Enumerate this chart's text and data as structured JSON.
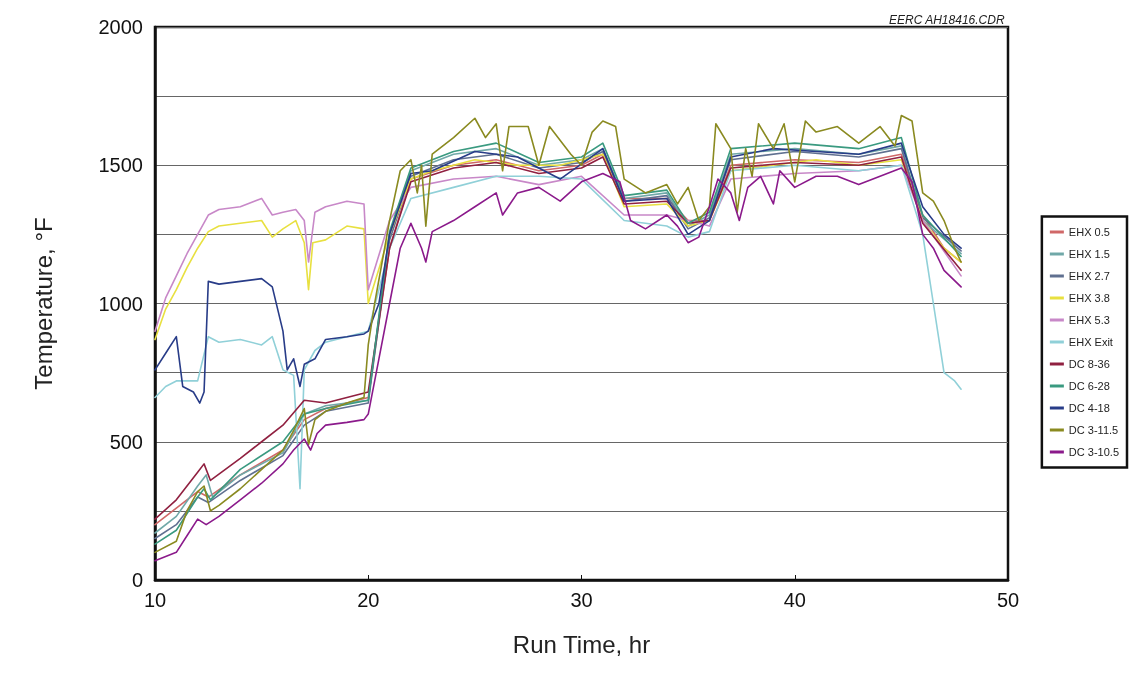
{
  "chart_data": {
    "type": "line",
    "xlabel": "Run Time, hr",
    "ylabel": "Temperature, °F",
    "annotations": [
      "EERC AH18416.CDR"
    ],
    "xlim": [
      10,
      50
    ],
    "xticks": [
      10,
      20,
      30,
      40,
      50
    ],
    "ylim": [
      0,
      2000
    ],
    "yticks": [
      0,
      {
        "value": 250,
        "label": null
      },
      500,
      {
        "value": 750,
        "label": null
      },
      1000,
      {
        "value": 1250,
        "label": null
      },
      1500,
      {
        "value": 1750,
        "label": null
      },
      2000
    ],
    "grid": "y",
    "legend": "right",
    "marker": "none",
    "line_style": "solid",
    "series": [
      {
        "name": "EHX 0.5",
        "color": "#d06868",
        "x": [
          10,
          11,
          12,
          12.5,
          14,
          16,
          17,
          18,
          19,
          20,
          21,
          22,
          24,
          26,
          28,
          30,
          31,
          32,
          34,
          35,
          36,
          37,
          40,
          43,
          45,
          46,
          47,
          47.8
        ],
        "values": [
          200,
          260,
          320,
          300,
          380,
          470,
          580,
          620,
          640,
          660,
          1200,
          1450,
          1500,
          1520,
          1480,
          1500,
          1540,
          1380,
          1380,
          1300,
          1300,
          1500,
          1520,
          1510,
          1540,
          1320,
          1200,
          1150
        ]
      },
      {
        "name": "EHX 1.5",
        "color": "#70a8a8",
        "x": [
          10,
          11,
          12,
          12.4,
          12.7,
          14,
          16,
          17,
          18,
          20,
          21,
          22,
          24,
          26,
          28,
          30,
          31,
          32,
          34,
          35,
          36,
          37,
          40,
          43,
          45,
          46,
          47.8
        ],
        "values": [
          170,
          230,
          340,
          380,
          300,
          380,
          460,
          600,
          630,
          650,
          1250,
          1480,
          1540,
          1560,
          1500,
          1520,
          1560,
          1380,
          1400,
          1280,
          1320,
          1540,
          1560,
          1540,
          1570,
          1300,
          1180
        ]
      },
      {
        "name": "EHX 2.7",
        "color": "#607090",
        "x": [
          10,
          11,
          12,
          12.5,
          14,
          16,
          17,
          18,
          20,
          21,
          22,
          24,
          26,
          28,
          30,
          31,
          32,
          34,
          35,
          36,
          37,
          40,
          43,
          45,
          46,
          47.8
        ],
        "values": [
          150,
          200,
          300,
          280,
          360,
          450,
          560,
          610,
          640,
          1230,
          1460,
          1520,
          1540,
          1490,
          1510,
          1550,
          1370,
          1390,
          1270,
          1310,
          1520,
          1550,
          1530,
          1560,
          1310,
          1190
        ]
      },
      {
        "name": "EHX 3.8",
        "color": "#e8e040",
        "x": [
          10,
          10.5,
          11,
          11.5,
          12,
          12.5,
          13,
          14,
          15,
          15.5,
          16,
          16.6,
          17,
          17.2,
          17.4,
          18,
          19,
          19.8,
          20,
          21,
          22,
          23,
          25,
          27,
          29,
          31,
          32,
          34,
          35,
          36,
          37,
          39,
          41,
          43,
          45,
          46,
          47,
          47.8
        ],
        "values": [
          870,
          980,
          1050,
          1130,
          1200,
          1260,
          1280,
          1290,
          1300,
          1240,
          1270,
          1300,
          1220,
          1050,
          1220,
          1230,
          1280,
          1270,
          1000,
          1250,
          1450,
          1480,
          1520,
          1500,
          1500,
          1540,
          1350,
          1360,
          1280,
          1300,
          1480,
          1500,
          1520,
          1500,
          1520,
          1300,
          1200,
          1150
        ]
      },
      {
        "name": "EHX 5.3",
        "color": "#c888c8",
        "x": [
          10,
          10.5,
          11,
          11.5,
          12,
          12.5,
          13,
          14,
          15,
          15.5,
          16,
          16.6,
          17,
          17.2,
          17.5,
          18,
          19,
          19.8,
          20,
          21,
          22,
          24,
          26,
          28,
          30,
          32,
          34,
          36,
          37,
          40,
          43,
          45,
          46,
          47.8
        ],
        "values": [
          900,
          1020,
          1100,
          1180,
          1250,
          1320,
          1340,
          1350,
          1380,
          1320,
          1330,
          1340,
          1300,
          1150,
          1330,
          1350,
          1370,
          1360,
          1050,
          1300,
          1420,
          1450,
          1460,
          1430,
          1460,
          1320,
          1320,
          1280,
          1450,
          1470,
          1480,
          1500,
          1300,
          1100
        ]
      },
      {
        "name": "EHX Exit",
        "color": "#90d0d8",
        "x": [
          10,
          10.5,
          11,
          11.5,
          12,
          12.5,
          13,
          14,
          15,
          15.5,
          16,
          16.5,
          16.8,
          17,
          17.5,
          18,
          19,
          20,
          21,
          22,
          24,
          26,
          28,
          30,
          32,
          34,
          35,
          36,
          37,
          40,
          43,
          45,
          46,
          46.5,
          47,
          47.5,
          47.8
        ],
        "values": [
          660,
          700,
          720,
          720,
          720,
          880,
          860,
          870,
          850,
          880,
          760,
          740,
          330,
          760,
          830,
          860,
          880,
          900,
          1200,
          1380,
          1420,
          1460,
          1460,
          1450,
          1300,
          1280,
          1240,
          1260,
          1480,
          1500,
          1480,
          1500,
          1250,
          1000,
          750,
          720,
          690
        ]
      },
      {
        "name": "DC 8-36",
        "color": "#902040",
        "x": [
          10,
          11,
          12,
          12.3,
          12.6,
          14,
          15,
          16,
          17,
          18,
          20,
          21,
          22,
          24,
          26,
          28,
          30,
          31,
          32,
          34,
          35,
          36,
          37,
          40,
          43,
          45,
          46,
          47.8
        ],
        "values": [
          220,
          290,
          390,
          420,
          360,
          440,
          500,
          560,
          650,
          640,
          680,
          1200,
          1440,
          1490,
          1510,
          1470,
          1490,
          1530,
          1360,
          1370,
          1290,
          1300,
          1490,
          1510,
          1500,
          1530,
          1290,
          1120
        ]
      },
      {
        "name": "DC 6-28",
        "color": "#3a9a80",
        "x": [
          10,
          11,
          12,
          12.3,
          12.6,
          14,
          16,
          17,
          18,
          20,
          21,
          22,
          24,
          26,
          28,
          30,
          31,
          32,
          34,
          35,
          36,
          37,
          40,
          43,
          45,
          46,
          47.8
        ],
        "values": [
          130,
          180,
          300,
          330,
          290,
          400,
          500,
          600,
          620,
          650,
          1260,
          1490,
          1550,
          1580,
          1510,
          1530,
          1580,
          1390,
          1410,
          1290,
          1330,
          1560,
          1580,
          1560,
          1600,
          1320,
          1170
        ]
      },
      {
        "name": "DC 4-18",
        "color": "#283c88",
        "x": [
          10,
          10.5,
          11,
          11.3,
          11.8,
          12.1,
          12.3,
          12.5,
          13,
          14,
          15,
          15.5,
          16,
          16.2,
          16.5,
          16.8,
          17,
          17.5,
          18,
          19,
          19.8,
          20,
          20.5,
          21,
          22,
          23,
          25,
          27,
          29,
          31,
          32,
          34,
          35,
          36,
          37,
          39,
          41,
          43,
          45,
          46,
          47,
          47.8
        ],
        "values": [
          760,
          820,
          880,
          700,
          680,
          640,
          680,
          1080,
          1070,
          1080,
          1090,
          1060,
          900,
          760,
          800,
          700,
          780,
          800,
          870,
          880,
          890,
          900,
          1000,
          1250,
          1470,
          1480,
          1550,
          1530,
          1450,
          1560,
          1370,
          1380,
          1250,
          1300,
          1530,
          1560,
          1550,
          1540,
          1580,
          1350,
          1250,
          1200
        ]
      },
      {
        "name": "DC 3-11.5",
        "color": "#8a8a20",
        "x": [
          10,
          11,
          11.5,
          12,
          12.3,
          12.6,
          13,
          14,
          15,
          16,
          16.5,
          17,
          17.2,
          17.5,
          18,
          19,
          19.8,
          20,
          20.3,
          21,
          21.5,
          22,
          22.3,
          22.5,
          22.7,
          23,
          24,
          25,
          25.5,
          26,
          26.3,
          26.6,
          27.5,
          28,
          28.5,
          29.5,
          30,
          30.5,
          31,
          31.6,
          32,
          33,
          34,
          34.5,
          35,
          35.5,
          36,
          36.3,
          37,
          37.3,
          37.7,
          38,
          38.3,
          39,
          39.5,
          40,
          40.5,
          41,
          42,
          43,
          44,
          44.7,
          45,
          45.5,
          46,
          46.5,
          47,
          47.5,
          47.8
        ],
        "values": [
          100,
          140,
          250,
          320,
          340,
          250,
          270,
          330,
          400,
          470,
          540,
          620,
          490,
          580,
          610,
          640,
          660,
          850,
          1000,
          1300,
          1480,
          1520,
          1400,
          1500,
          1280,
          1540,
          1600,
          1670,
          1600,
          1650,
          1480,
          1640,
          1640,
          1500,
          1640,
          1540,
          1500,
          1620,
          1660,
          1640,
          1450,
          1400,
          1430,
          1360,
          1420,
          1300,
          1350,
          1650,
          1560,
          1330,
          1560,
          1460,
          1650,
          1560,
          1650,
          1440,
          1660,
          1620,
          1640,
          1580,
          1640,
          1570,
          1680,
          1660,
          1400,
          1370,
          1300,
          1200,
          1150
        ]
      },
      {
        "name": "DC 3-10.5",
        "color": "#8b1a8b",
        "x": [
          10,
          11,
          11.5,
          12,
          12.4,
          13,
          14,
          15,
          16,
          16.5,
          17,
          17.3,
          17.6,
          18,
          19,
          19.8,
          20,
          20.5,
          21,
          21.5,
          22,
          22.5,
          22.7,
          23,
          24,
          25,
          26,
          26.3,
          27,
          28,
          29,
          30,
          31,
          31.8,
          32.3,
          33,
          34,
          34.5,
          35,
          35.5,
          36,
          36.4,
          37,
          37.4,
          37.8,
          38.4,
          39,
          39.3,
          40,
          41,
          42,
          43,
          44,
          45,
          45.5,
          46,
          46.5,
          47,
          47.8
        ],
        "values": [
          70,
          100,
          160,
          220,
          200,
          230,
          290,
          350,
          420,
          470,
          510,
          470,
          530,
          560,
          570,
          580,
          600,
          800,
          1000,
          1200,
          1290,
          1200,
          1150,
          1260,
          1300,
          1350,
          1400,
          1320,
          1400,
          1420,
          1370,
          1440,
          1470,
          1440,
          1300,
          1270,
          1320,
          1280,
          1220,
          1240,
          1350,
          1450,
          1400,
          1300,
          1420,
          1460,
          1360,
          1480,
          1420,
          1460,
          1460,
          1430,
          1460,
          1490,
          1440,
          1250,
          1200,
          1120,
          1060
        ]
      }
    ]
  }
}
